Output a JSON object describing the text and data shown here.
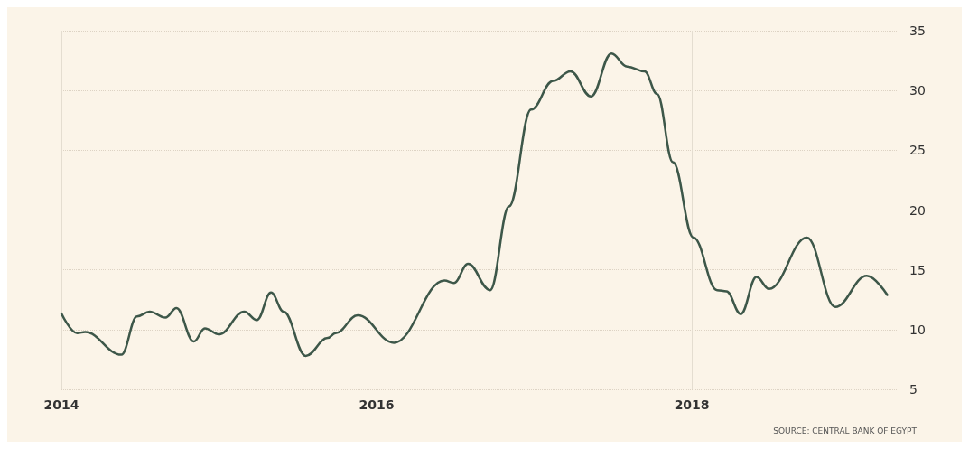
{
  "chart_data": {
    "type": "line",
    "annotations": [
      "SOURCE: CENTRAL BANK OF EGYPT"
    ],
    "x": [
      2014.0,
      2014.1,
      2014.15,
      2014.38,
      2014.48,
      2014.56,
      2014.66,
      2014.73,
      2014.84,
      2014.91,
      2015.0,
      2015.16,
      2015.24,
      2015.33,
      2015.41,
      2015.55,
      2015.69,
      2015.74,
      2015.88,
      2016.11,
      2016.43,
      2016.49,
      2016.58,
      2016.72,
      2016.84,
      2016.98,
      2017.12,
      2017.23,
      2017.36,
      2017.49,
      2017.59,
      2017.7,
      2017.78,
      2017.88,
      2018.01,
      2018.16,
      2018.22,
      2018.31,
      2018.41,
      2018.49,
      2018.73,
      2018.91,
      2019.11,
      2019.24
    ],
    "series": [
      {
        "color": "#3d5749",
        "values": [
          11.35,
          9.7,
          9.8,
          7.9,
          11.1,
          11.5,
          11.0,
          11.8,
          9.0,
          10.1,
          9.6,
          11.5,
          10.8,
          13.1,
          11.5,
          7.8,
          9.3,
          9.7,
          11.2,
          8.9,
          14.1,
          13.9,
          15.5,
          13.3,
          20.3,
          28.4,
          30.8,
          31.6,
          29.5,
          33.1,
          32.0,
          31.6,
          29.7,
          24.0,
          17.7,
          13.3,
          13.2,
          11.3,
          14.4,
          13.4,
          17.7,
          11.9,
          14.5,
          12.9
        ]
      }
    ],
    "xlim": [
      2014,
      2019.3
    ],
    "xticks": [
      2014,
      2016,
      2018
    ],
    "ylim": [
      5,
      35
    ],
    "yticks": [
      5,
      10,
      15,
      20,
      25,
      30,
      35
    ],
    "grid": true,
    "marker": "none",
    "line_style": "solid"
  }
}
